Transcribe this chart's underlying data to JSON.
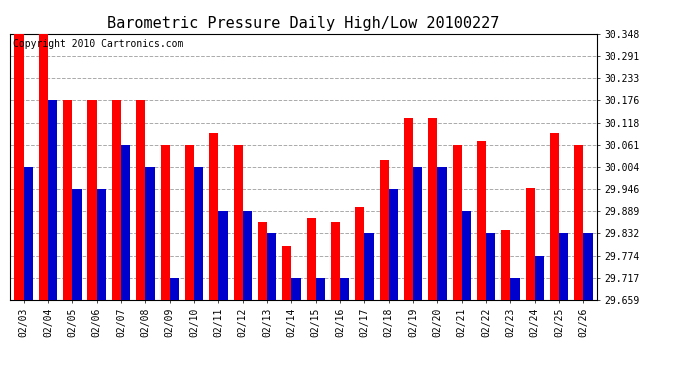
{
  "title": "Barometric Pressure Daily High/Low 20100227",
  "copyright": "Copyright 2010 Cartronics.com",
  "dates": [
    "02/03",
    "02/04",
    "02/05",
    "02/06",
    "02/07",
    "02/08",
    "02/09",
    "02/10",
    "02/11",
    "02/12",
    "02/13",
    "02/14",
    "02/15",
    "02/16",
    "02/17",
    "02/18",
    "02/19",
    "02/20",
    "02/21",
    "02/22",
    "02/23",
    "02/24",
    "02/25",
    "02/26"
  ],
  "highs": [
    30.348,
    30.348,
    30.176,
    30.176,
    30.176,
    30.176,
    30.061,
    30.061,
    30.09,
    30.061,
    29.86,
    29.8,
    29.87,
    29.86,
    29.9,
    30.02,
    30.13,
    30.13,
    30.061,
    30.07,
    29.84,
    29.95,
    30.09,
    30.061
  ],
  "lows": [
    30.004,
    30.176,
    29.946,
    29.946,
    30.061,
    30.004,
    29.717,
    30.004,
    29.889,
    29.889,
    29.832,
    29.717,
    29.717,
    29.717,
    29.832,
    29.946,
    30.004,
    30.004,
    29.889,
    29.832,
    29.717,
    29.774,
    29.832,
    29.832
  ],
  "yticks": [
    29.659,
    29.717,
    29.774,
    29.832,
    29.889,
    29.946,
    30.004,
    30.061,
    30.118,
    30.176,
    30.233,
    30.291,
    30.348
  ],
  "ymin": 29.659,
  "ymax": 30.348,
  "bar_width": 0.38,
  "high_color": "#ff0000",
  "low_color": "#0000cc",
  "bg_color": "#ffffff",
  "grid_color": "#aaaaaa",
  "title_fontsize": 11,
  "copyright_fontsize": 7
}
